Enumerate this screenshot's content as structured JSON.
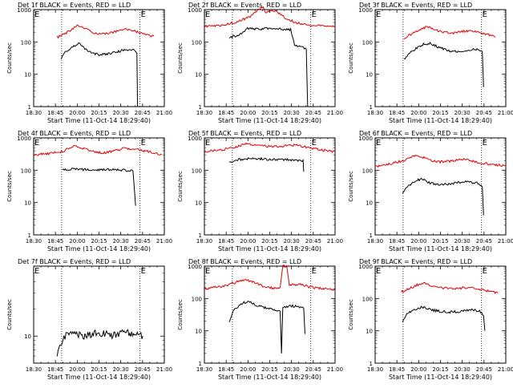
{
  "figure": {
    "background": "#ffffff",
    "colors": {
      "events": "#000000",
      "lld": "#dd0000",
      "axis": "#000000"
    }
  },
  "chart_data": [
    {
      "type": "line",
      "title": "Det 1f BLACK = Events, RED = LLD",
      "xlabel": "Start Time (11-Oct-14 18:29:40)",
      "ylabel": "Counts/sec",
      "xticks": [
        "18:30",
        "18:45",
        "20:00",
        "20:15",
        "20:30",
        "20:45",
        "21:00"
      ],
      "yticks": [
        "1",
        "10",
        "100",
        "1000"
      ],
      "yscale": "log",
      "ylim": [
        1,
        1000
      ],
      "markers": [
        "E",
        "E"
      ],
      "series": [
        {
          "values": [
            [
              0.18,
              140
            ],
            [
              0.22,
              160
            ],
            [
              0.28,
              230
            ],
            [
              0.34,
              330
            ],
            [
              0.38,
              280
            ],
            [
              0.46,
              190
            ],
            [
              0.52,
              175
            ],
            [
              0.6,
              200
            ],
            [
              0.7,
              245
            ],
            [
              0.78,
              210
            ],
            [
              0.86,
              165
            ],
            [
              0.92,
              150
            ]
          ]
        },
        {
          "values": [
            [
              0.21,
              30
            ],
            [
              0.23,
              45
            ],
            [
              0.26,
              55
            ],
            [
              0.3,
              75
            ],
            [
              0.35,
              90
            ],
            [
              0.42,
              50
            ],
            [
              0.5,
              40
            ],
            [
              0.6,
              45
            ],
            [
              0.7,
              58
            ],
            [
              0.77,
              55
            ],
            [
              0.79,
              45
            ],
            [
              0.795,
              1
            ]
          ]
        }
      ]
    },
    {
      "type": "line",
      "title": "Det 2f BLACK = Events, RED = LLD",
      "xlabel": "Start Time (11-Oct-14 18:29:40)",
      "ylabel": "Counts/sec",
      "xticks": [
        "18:30",
        "18:45",
        "20:00",
        "20:15",
        "20:30",
        "20:45",
        "21:00"
      ],
      "yticks": [
        "1",
        "10",
        "100",
        "1000"
      ],
      "yscale": "log",
      "ylim": [
        1,
        1000
      ],
      "markers": [
        "E",
        "E"
      ],
      "series": [
        {
          "values": [
            [
              0.0,
              300
            ],
            [
              0.12,
              320
            ],
            [
              0.25,
              420
            ],
            [
              0.35,
              620
            ],
            [
              0.4,
              900
            ],
            [
              0.44,
              1200
            ],
            [
              0.47,
              850
            ],
            [
              0.52,
              1000
            ],
            [
              0.56,
              800
            ],
            [
              0.62,
              550
            ],
            [
              0.7,
              400
            ],
            [
              0.8,
              330
            ],
            [
              1.0,
              300
            ]
          ]
        },
        {
          "values": [
            [
              0.19,
              130
            ],
            [
              0.22,
              150
            ],
            [
              0.26,
              160
            ],
            [
              0.3,
              210
            ],
            [
              0.33,
              260
            ],
            [
              0.4,
              250
            ],
            [
              0.5,
              260
            ],
            [
              0.58,
              250
            ],
            [
              0.66,
              240
            ],
            [
              0.69,
              80
            ],
            [
              0.75,
              70
            ],
            [
              0.78,
              60
            ],
            [
              0.79,
              1
            ]
          ]
        }
      ]
    },
    {
      "type": "line",
      "title": "Det 3f BLACK = Events, RED = LLD",
      "xlabel": "Start Time (11-Oct-14 18:29:40)",
      "ylabel": "Counts/sec",
      "xticks": [
        "18:30",
        "18:45",
        "20:00",
        "20:15",
        "20:30",
        "20:45",
        "21:00"
      ],
      "yticks": [
        "1",
        "10",
        "100",
        "1000"
      ],
      "yscale": "log",
      "ylim": [
        1,
        1000
      ],
      "markers": [
        "E",
        "E"
      ],
      "series": [
        {
          "values": [
            [
              0.22,
              130
            ],
            [
              0.28,
              180
            ],
            [
              0.35,
              240
            ],
            [
              0.4,
              300
            ],
            [
              0.46,
              240
            ],
            [
              0.52,
              200
            ],
            [
              0.6,
              190
            ],
            [
              0.7,
              220
            ],
            [
              0.78,
              200
            ],
            [
              0.86,
              170
            ],
            [
              0.92,
              140
            ]
          ]
        },
        {
          "values": [
            [
              0.22,
              30
            ],
            [
              0.26,
              45
            ],
            [
              0.32,
              65
            ],
            [
              0.37,
              85
            ],
            [
              0.42,
              90
            ],
            [
              0.48,
              70
            ],
            [
              0.55,
              55
            ],
            [
              0.62,
              50
            ],
            [
              0.7,
              55
            ],
            [
              0.78,
              60
            ],
            [
              0.82,
              50
            ],
            [
              0.83,
              4
            ]
          ]
        }
      ]
    },
    {
      "type": "line",
      "title": "Det 4f BLACK = Events, RED = LLD",
      "xlabel": "Start Time (11-Oct-14 18:29:40)",
      "ylabel": "Counts/sec",
      "xticks": [
        "18:30",
        "18:45",
        "20:00",
        "20:15",
        "20:30",
        "20:45",
        "21:00"
      ],
      "yticks": [
        "1",
        "10",
        "100",
        "1000"
      ],
      "yscale": "log",
      "ylim": [
        1,
        1000
      ],
      "markers": [
        "E",
        "E"
      ],
      "series": [
        {
          "values": [
            [
              0.0,
              300
            ],
            [
              0.1,
              320
            ],
            [
              0.22,
              380
            ],
            [
              0.32,
              580
            ],
            [
              0.42,
              420
            ],
            [
              0.52,
              340
            ],
            [
              0.6,
              380
            ],
            [
              0.7,
              480
            ],
            [
              0.8,
              440
            ],
            [
              0.9,
              360
            ],
            [
              0.98,
              300
            ]
          ]
        },
        {
          "values": [
            [
              0.22,
              100
            ],
            [
              0.3,
              110
            ],
            [
              0.4,
              105
            ],
            [
              0.5,
              100
            ],
            [
              0.6,
              105
            ],
            [
              0.7,
              100
            ],
            [
              0.76,
              95
            ],
            [
              0.78,
              8
            ]
          ]
        }
      ]
    },
    {
      "type": "line",
      "title": "Det 5f BLACK = Events, RED = LLD",
      "xlabel": "Start Time (11-Oct-14 18:29:40)",
      "ylabel": "Counts/sec",
      "xticks": [
        "18:30",
        "18:45",
        "20:00",
        "20:15",
        "20:30",
        "20:45",
        "21:00"
      ],
      "yticks": [
        "1",
        "10",
        "100",
        "1000"
      ],
      "yscale": "log",
      "ylim": [
        1,
        1000
      ],
      "markers": [
        "E",
        "E"
      ],
      "series": [
        {
          "values": [
            [
              0.0,
              380
            ],
            [
              0.12,
              420
            ],
            [
              0.22,
              500
            ],
            [
              0.32,
              640
            ],
            [
              0.4,
              620
            ],
            [
              0.5,
              540
            ],
            [
              0.6,
              560
            ],
            [
              0.7,
              600
            ],
            [
              0.8,
              500
            ],
            [
              0.9,
              420
            ],
            [
              1.0,
              380
            ]
          ]
        },
        {
          "values": [
            [
              0.19,
              170
            ],
            [
              0.24,
              210
            ],
            [
              0.3,
              220
            ],
            [
              0.4,
              230
            ],
            [
              0.5,
              215
            ],
            [
              0.6,
              210
            ],
            [
              0.7,
              205
            ],
            [
              0.755,
              200
            ],
            [
              0.76,
              90
            ]
          ]
        }
      ]
    },
    {
      "type": "line",
      "title": "Det 6f BLACK = Events, RED = LLD",
      "xlabel": "Start Time (11-Oct-14 18:29:40)",
      "ylabel": "Counts/sec",
      "xticks": [
        "18:30",
        "18:45",
        "20:00",
        "20:15",
        "20:30",
        "20:45",
        "21:00"
      ],
      "yticks": [
        "1",
        "10",
        "100",
        "1000"
      ],
      "yscale": "log",
      "ylim": [
        1,
        1000
      ],
      "markers": [
        "E",
        "E"
      ],
      "series": [
        {
          "values": [
            [
              0.0,
              130
            ],
            [
              0.12,
              160
            ],
            [
              0.22,
              200
            ],
            [
              0.3,
              280
            ],
            [
              0.36,
              260
            ],
            [
              0.44,
              190
            ],
            [
              0.52,
              180
            ],
            [
              0.6,
              200
            ],
            [
              0.7,
              220
            ],
            [
              0.8,
              170
            ],
            [
              0.9,
              150
            ],
            [
              1.0,
              140
            ]
          ]
        },
        {
          "values": [
            [
              0.21,
              20
            ],
            [
              0.24,
              30
            ],
            [
              0.3,
              45
            ],
            [
              0.36,
              55
            ],
            [
              0.42,
              40
            ],
            [
              0.5,
              35
            ],
            [
              0.6,
              40
            ],
            [
              0.7,
              45
            ],
            [
              0.78,
              40
            ],
            [
              0.82,
              30
            ],
            [
              0.83,
              4
            ]
          ]
        }
      ]
    },
    {
      "type": "line",
      "title": "Det 7f BLACK = Events, RED = LLD",
      "xlabel": "Start Time (11-Oct-14 18:29:40)",
      "ylabel": "Counts/sec",
      "xticks": [
        "18:30",
        "18:45",
        "20:00",
        "20:15",
        "20:30",
        "20:45",
        "21:00"
      ],
      "yticks": [
        "10"
      ],
      "yscale": "log",
      "ylim": [
        5,
        60
      ],
      "markers": [
        "E",
        "E"
      ],
      "series": [
        {
          "values": []
        },
        {
          "values": [
            [
              0.18,
              6
            ],
            [
              0.2,
              8
            ],
            [
              0.24,
              10
            ],
            [
              0.3,
              11
            ],
            [
              0.4,
              10
            ],
            [
              0.5,
              11
            ],
            [
              0.6,
              10
            ],
            [
              0.7,
              11
            ],
            [
              0.8,
              10
            ],
            [
              0.835,
              10
            ]
          ]
        }
      ]
    },
    {
      "type": "line",
      "title": "Det 8f BLACK = Events, RED = LLD",
      "xlabel": "Start Time (11-Oct-14 18:29:40)",
      "ylabel": "Counts/sec",
      "xticks": [
        "18:30",
        "18:45",
        "20:00",
        "20:15",
        "20:30",
        "20:45",
        "21:00"
      ],
      "yticks": [
        "1",
        "10",
        "100",
        "1000"
      ],
      "yscale": "log",
      "ylim": [
        1,
        1000
      ],
      "markers": [
        "E",
        "E"
      ],
      "series": [
        {
          "values": [
            [
              0.0,
              200
            ],
            [
              0.12,
              230
            ],
            [
              0.2,
              280
            ],
            [
              0.3,
              380
            ],
            [
              0.38,
              320
            ],
            [
              0.46,
              230
            ],
            [
              0.54,
              210
            ],
            [
              0.58,
              220
            ],
            [
              0.6,
              1000
            ],
            [
              0.63,
              1000
            ],
            [
              0.65,
              260
            ],
            [
              0.72,
              280
            ],
            [
              0.8,
              230
            ],
            [
              0.9,
              200
            ],
            [
              1.0,
              190
            ]
          ]
        },
        {
          "values": [
            [
              0.19,
              20
            ],
            [
              0.22,
              40
            ],
            [
              0.28,
              70
            ],
            [
              0.34,
              80
            ],
            [
              0.4,
              60
            ],
            [
              0.48,
              50
            ],
            [
              0.55,
              45
            ],
            [
              0.58,
              40
            ],
            [
              0.59,
              2
            ],
            [
              0.6,
              50
            ],
            [
              0.66,
              60
            ],
            [
              0.72,
              55
            ],
            [
              0.76,
              50
            ],
            [
              0.77,
              8
            ]
          ]
        }
      ]
    },
    {
      "type": "line",
      "title": "Det 9f BLACK = Events, RED = LLD",
      "xlabel": "Start Time (11-Oct-14 18:29:40)",
      "ylabel": "Counts/sec",
      "xticks": [
        "18:30",
        "18:45",
        "20:00",
        "20:15",
        "20:30",
        "20:45",
        "21:00"
      ],
      "yticks": [
        "1",
        "10",
        "100",
        "1000"
      ],
      "yscale": "log",
      "ylim": [
        1,
        1000
      ],
      "markers": [
        "E",
        "E"
      ],
      "series": [
        {
          "values": [
            [
              0.2,
              160
            ],
            [
              0.26,
              200
            ],
            [
              0.32,
              260
            ],
            [
              0.38,
              300
            ],
            [
              0.44,
              240
            ],
            [
              0.52,
              210
            ],
            [
              0.6,
              200
            ],
            [
              0.7,
              220
            ],
            [
              0.78,
              200
            ],
            [
              0.86,
              170
            ],
            [
              0.94,
              150
            ]
          ]
        },
        {
          "values": [
            [
              0.21,
              20
            ],
            [
              0.25,
              35
            ],
            [
              0.3,
              45
            ],
            [
              0.36,
              55
            ],
            [
              0.42,
              45
            ],
            [
              0.5,
              40
            ],
            [
              0.58,
              38
            ],
            [
              0.66,
              40
            ],
            [
              0.74,
              45
            ],
            [
              0.8,
              40
            ],
            [
              0.83,
              30
            ],
            [
              0.84,
              10
            ]
          ]
        }
      ]
    }
  ]
}
